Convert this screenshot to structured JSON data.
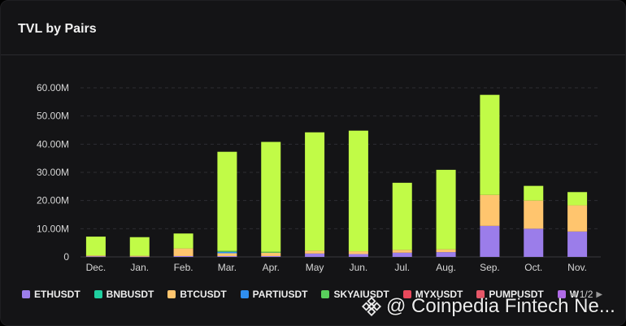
{
  "title": "TVL by Pairs",
  "legend": {
    "items": [
      {
        "label": "ETHUSDT",
        "color": "#9b7dea"
      },
      {
        "label": "BNBUSDT",
        "color": "#1fcf9f"
      },
      {
        "label": "BTCUSDT",
        "color": "#ffc56e"
      },
      {
        "label": "PARTIUSDT",
        "color": "#2f8ef0"
      },
      {
        "label": "SKYAIUSDT",
        "color": "#59d05c"
      },
      {
        "label": "MYXUSDT",
        "color": "#e8495c"
      },
      {
        "label": "PUMPUSDT",
        "color": "#e65768"
      },
      {
        "label": "W",
        "color": "#b06be8"
      }
    ],
    "page": "1/2"
  },
  "watermark": "@ Coinpedia Fintech Ne...",
  "chart_data": {
    "type": "bar",
    "stacked": true,
    "categories": [
      "Dec.",
      "Jan.",
      "Feb.",
      "Mar.",
      "Apr.",
      "May",
      "Jun.",
      "Jul.",
      "Aug.",
      "Sep.",
      "Oct.",
      "Nov."
    ],
    "yticks": [
      "0",
      "10.00M",
      "20.00M",
      "30.00M",
      "40.00M",
      "50.00M",
      "60.00M"
    ],
    "ylim": [
      0,
      60000000
    ],
    "grid": true,
    "series": [
      {
        "name": "ETHUSDT",
        "color": "#9b7dea",
        "values": [
          200000,
          100000,
          300000,
          300000,
          300000,
          1200000,
          1000000,
          1500000,
          1700000,
          11000000,
          10000000,
          9000000
        ]
      },
      {
        "name": "BTCUSDT",
        "color": "#ffc56e",
        "values": [
          300000,
          300000,
          2700000,
          1000000,
          1200000,
          1000000,
          1000000,
          1000000,
          1000000,
          11000000,
          10000000,
          9300000
        ]
      },
      {
        "name": "PARTIUSDT",
        "color": "#2f8ef0",
        "values": [
          0,
          0,
          0,
          500000,
          0,
          0,
          0,
          0,
          0,
          0,
          0,
          0
        ]
      },
      {
        "name": "SKYAIUSDT",
        "color": "#59d05c",
        "values": [
          0,
          0,
          0,
          300000,
          300000,
          0,
          0,
          0,
          0,
          0,
          0,
          0
        ]
      },
      {
        "name": "",
        "color": "#c1fb47",
        "values": [
          6700000,
          6600000,
          5300000,
          35200000,
          39000000,
          42000000,
          42800000,
          23800000,
          28200000,
          35500000,
          5200000,
          4700000
        ]
      }
    ]
  }
}
